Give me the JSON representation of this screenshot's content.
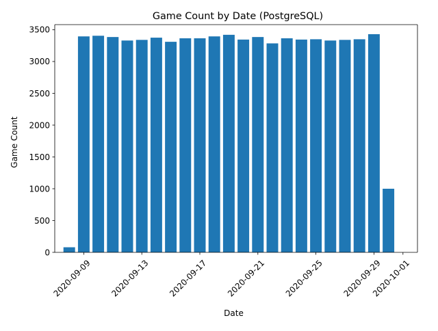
{
  "chart_data": {
    "type": "bar",
    "title": "Game Count by Date (PostgreSQL)",
    "xlabel": "Date",
    "ylabel": "Game Count",
    "categories": [
      "2020-09-08",
      "2020-09-09",
      "2020-09-10",
      "2020-09-11",
      "2020-09-12",
      "2020-09-13",
      "2020-09-14",
      "2020-09-15",
      "2020-09-16",
      "2020-09-17",
      "2020-09-18",
      "2020-09-19",
      "2020-09-20",
      "2020-09-21",
      "2020-09-22",
      "2020-09-23",
      "2020-09-24",
      "2020-09-25",
      "2020-09-26",
      "2020-09-27",
      "2020-09-28",
      "2020-09-29",
      "2020-09-30"
    ],
    "values": [
      80,
      3395,
      3405,
      3385,
      3330,
      3340,
      3375,
      3310,
      3365,
      3365,
      3395,
      3420,
      3345,
      3385,
      3285,
      3365,
      3345,
      3350,
      3330,
      3340,
      3350,
      3430,
      1000
    ],
    "xlim": [
      "2020-09-07",
      "2020-10-02"
    ],
    "x_ticks": [
      "2020-09-09",
      "2020-09-13",
      "2020-09-17",
      "2020-09-21",
      "2020-09-25",
      "2020-09-29",
      "2020-10-01"
    ],
    "ylim": [
      0,
      3580
    ],
    "y_ticks": [
      0,
      500,
      1000,
      1500,
      2000,
      2500,
      3000,
      3500
    ],
    "bar_color": "#1f77b4",
    "grid": false,
    "legend": "none"
  }
}
